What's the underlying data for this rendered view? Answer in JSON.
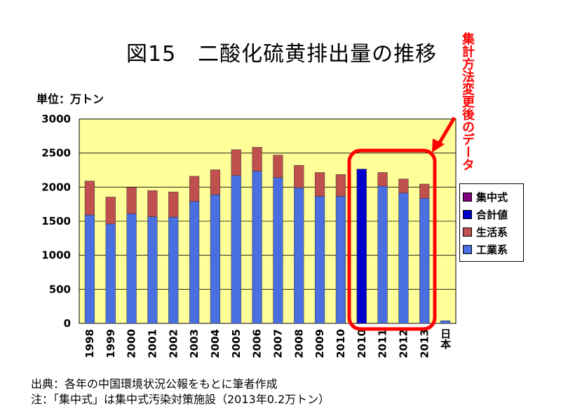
{
  "title": "図15　二酸化硫黄排出量の推移",
  "unit_label": "単位：万トン",
  "annotation": "集計方法変更後のデータ",
  "footnotes": [
    "出典：各年の中国環境状況公報をもとに筆者作成",
    "注：「集中式」は集中式汚染対策施設（2013年0.2万トン）"
  ],
  "colors": {
    "plot_bg": "#ffff99",
    "industrial": "#4a6fe0",
    "domestic": "#c0504d",
    "total": "#0000cc",
    "centralized": "#800080",
    "highlight": "#ff0000"
  },
  "chart_data": {
    "type": "bar",
    "stacked": true,
    "categories": [
      "1998",
      "1999",
      "2000",
      "2001",
      "2002",
      "2003",
      "2004",
      "2005",
      "2006",
      "2007",
      "2008",
      "2009",
      "2010",
      "2010",
      "2011",
      "2012",
      "2013",
      "日本"
    ],
    "series": [
      {
        "name": "工業系",
        "color": "#4a6fe0",
        "values": [
          1590,
          1460,
          1610,
          1565,
          1560,
          1790,
          1890,
          2170,
          2235,
          2140,
          1990,
          1865,
          1865,
          0,
          2015,
          1915,
          1835,
          40
        ]
      },
      {
        "name": "生活系",
        "color": "#c0504d",
        "values": [
          500,
          395,
          385,
          385,
          370,
          370,
          365,
          380,
          350,
          330,
          330,
          350,
          320,
          0,
          200,
          205,
          210,
          0
        ]
      },
      {
        "name": "合計値",
        "color": "#0000cc",
        "values": [
          0,
          0,
          0,
          0,
          0,
          0,
          0,
          0,
          0,
          0,
          0,
          0,
          0,
          2265,
          0,
          0,
          0,
          0
        ]
      },
      {
        "name": "集中式",
        "color": "#800080",
        "values": [
          0,
          0,
          0,
          0,
          0,
          0,
          0,
          0,
          0,
          0,
          0,
          0,
          0,
          0,
          0,
          0,
          0,
          0
        ]
      }
    ],
    "legend": [
      "集中式",
      "合計値",
      "生活系",
      "工業系"
    ],
    "legend_position": "right",
    "ylim": [
      0,
      3000
    ],
    "yticks": [
      0,
      500,
      1000,
      1500,
      2000,
      2500,
      3000
    ],
    "grid": true,
    "highlight_categories": [
      13,
      16
    ]
  }
}
